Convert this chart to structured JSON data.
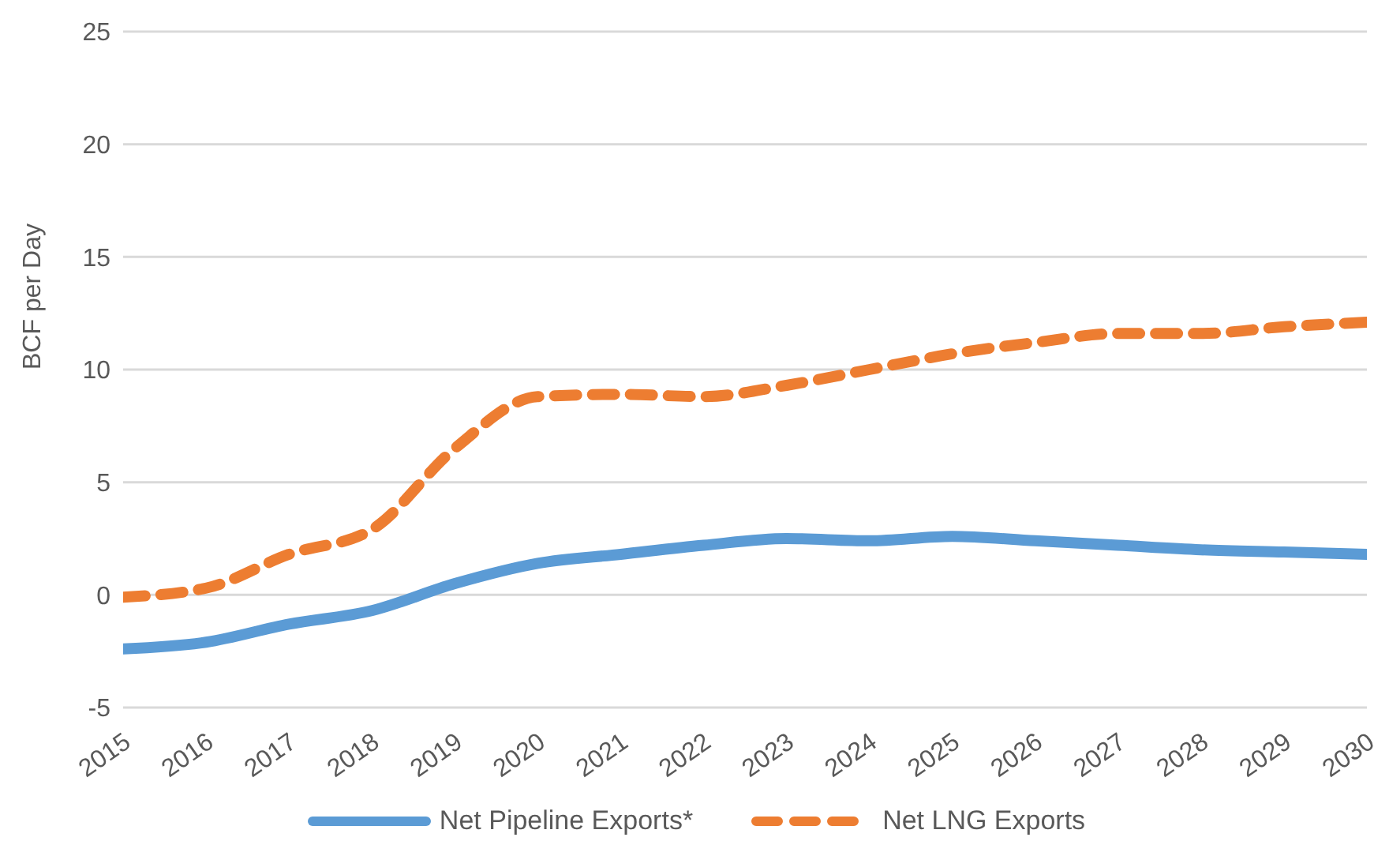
{
  "chart_data": {
    "type": "line",
    "ylabel": "BCF per Day",
    "categories": [
      "2015",
      "2016",
      "2017",
      "2018",
      "2019",
      "2020",
      "2021",
      "2022",
      "2023",
      "2024",
      "2025",
      "2026",
      "2027",
      "2028",
      "2029",
      "2030"
    ],
    "series": [
      {
        "name": "Net Pipeline Exports*",
        "color": "#5b9bd5",
        "line_style": "solid",
        "values": [
          -2.4,
          -2.1,
          -1.3,
          -0.7,
          0.5,
          1.4,
          1.8,
          2.2,
          2.5,
          2.4,
          2.6,
          2.4,
          2.2,
          2.0,
          1.9,
          1.8
        ]
      },
      {
        "name": "Net LNG Exports",
        "color": "#ed7d31",
        "line_style": "dashed",
        "values": [
          -0.1,
          0.3,
          1.8,
          2.9,
          6.5,
          8.8,
          8.9,
          8.8,
          9.3,
          10.0,
          10.7,
          11.2,
          11.6,
          11.6,
          11.9,
          12.1
        ]
      }
    ],
    "ylim": [
      -5,
      25
    ],
    "yticks": [
      -5,
      0,
      5,
      10,
      15,
      20,
      25
    ],
    "grid": "y",
    "legend": "bottom",
    "marker": "none"
  }
}
